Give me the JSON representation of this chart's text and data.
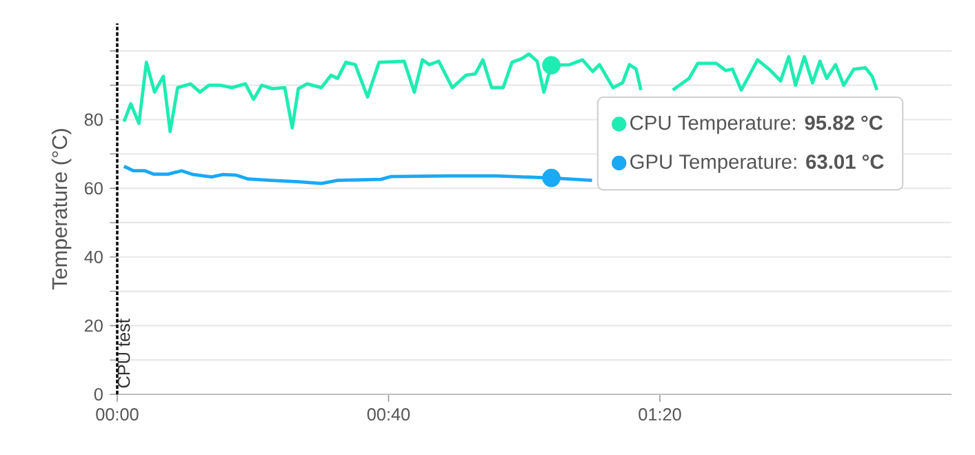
{
  "chart_data": {
    "type": "line",
    "ylabel": "Temperature (°C)",
    "xlim": [
      0,
      123
    ],
    "ylim": [
      0,
      108
    ],
    "xticks": [
      {
        "value": 0,
        "label": "00:00"
      },
      {
        "value": 40,
        "label": "00:40"
      },
      {
        "value": 80,
        "label": "01:20"
      }
    ],
    "yticks": [
      0,
      {
        "value": 10,
        "label": null
      },
      20,
      {
        "value": 30,
        "label": null
      },
      40,
      {
        "value": 50,
        "label": null
      },
      60,
      {
        "value": 70,
        "label": null
      },
      80,
      {
        "value": 90,
        "label": null
      },
      {
        "value": 100,
        "label": null
      }
    ],
    "grid": "y",
    "line_style": "solid",
    "legend": "right",
    "series": [
      {
        "name": "CPU Temperature",
        "color": "#1fecb2",
        "x": [
          1.0,
          2.0,
          3.2,
          4.3,
          5.5,
          6.8,
          7.8,
          8.9,
          10.8,
          12.2,
          13.5,
          15.2,
          16.9,
          18.9,
          20.1,
          21.3,
          22.9,
          24.7,
          25.8,
          26.7,
          28.0,
          30.1,
          31.5,
          32.5,
          33.7,
          35.1,
          36.9,
          38.6,
          42.3,
          43.8,
          45.0,
          46.0,
          47.4,
          49.4,
          51.4,
          52.8,
          53.9,
          55.2,
          56.9,
          58.2,
          59.6,
          60.7,
          61.9,
          62.9,
          64.0,
          66.7,
          68.6,
          70.1,
          71.1,
          73.1,
          74.5,
          75.5,
          76.5,
          77.2,
          80.0,
          81.9,
          84.3,
          85.6,
          88.3,
          89.7,
          90.7,
          92.0,
          94.4,
          96.1,
          97.8,
          99.0,
          100.0,
          101.3,
          102.5,
          103.6,
          104.6,
          105.9,
          107.1,
          108.6,
          110.3,
          111.3,
          112.0
        ],
        "values": [
          79.4,
          84.6,
          78.9,
          96.7,
          88.0,
          92.6,
          76.5,
          89.3,
          90.4,
          88.0,
          90.0,
          90.0,
          89.3,
          90.4,
          85.9,
          90.0,
          89.0,
          89.3,
          77.6,
          89.0,
          90.4,
          89.3,
          92.9,
          92.0,
          96.7,
          96.0,
          86.6,
          96.7,
          97.0,
          88.0,
          97.4,
          96.0,
          97.0,
          89.3,
          92.9,
          93.3,
          97.4,
          89.3,
          89.3,
          96.7,
          97.7,
          99.1,
          97.0,
          88.0,
          95.82,
          96.0,
          97.4,
          94.0,
          96.0,
          89.3,
          90.7,
          96.0,
          94.7,
          88.6,
          null,
          88.6,
          92.0,
          96.4,
          96.4,
          94.3,
          94.7,
          88.6,
          97.4,
          94.7,
          91.3,
          98.3,
          90.0,
          98.3,
          90.7,
          97.0,
          92.0,
          96.0,
          90.0,
          94.7,
          95.1,
          92.6,
          88.6
        ]
      },
      {
        "name": "GPU Temperature",
        "color": "#1aa9f4",
        "x": [
          1.0,
          2.4,
          4.1,
          5.4,
          7.5,
          9.5,
          11.2,
          13.9,
          15.6,
          17.6,
          19.3,
          22.7,
          26.7,
          30.1,
          32.5,
          38.9,
          40.3,
          49.1,
          55.8,
          64.0,
          70.0
        ],
        "values": [
          66.4,
          65.1,
          65.1,
          64.1,
          64.1,
          65.1,
          64.0,
          63.3,
          64.0,
          63.8,
          62.7,
          62.3,
          61.9,
          61.4,
          62.3,
          62.6,
          63.4,
          63.6,
          63.6,
          63.01,
          62.3
        ]
      },
      {
        "type": "scatter",
        "color": "#1fecb2",
        "x": [
          64.0
        ],
        "values": [
          95.82
        ]
      },
      {
        "type": "scatter",
        "color": "#1aa9f4",
        "x": [
          64.0
        ],
        "values": [
          63.01
        ]
      }
    ],
    "ref_lines": [
      {
        "axis": "x",
        "value": 0,
        "label": "CPU test",
        "color": "#000000",
        "line_style": "dashed"
      }
    ],
    "annotations": [
      ": **95.82 °C**",
      ": **63.01 °C**"
    ]
  }
}
